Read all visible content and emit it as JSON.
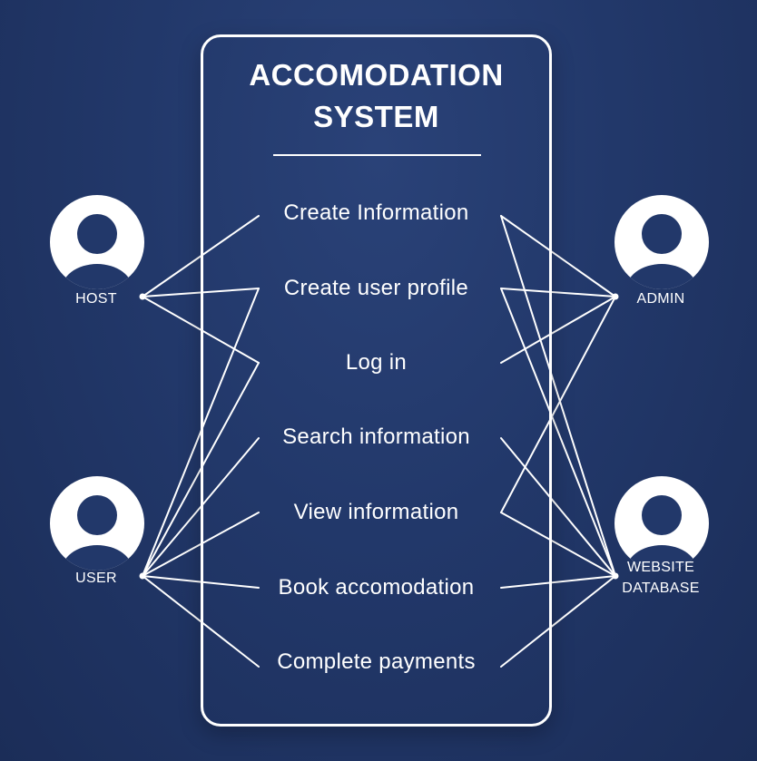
{
  "system": {
    "title_line1": "ACCOMODATION",
    "title_line2": "SYSTEM"
  },
  "use_cases": [
    "Create Information",
    "Create user profile",
    "Log in",
    "Search information",
    "View information",
    "Book accomodation",
    "Complete payments"
  ],
  "actors": {
    "host": "HOST",
    "user": "USER",
    "admin": "ADMIN",
    "database_line1": "WEBSITE",
    "database_line2": "DATABASE"
  },
  "actor_icon": "person-avatar-icon",
  "colors": {
    "background": "#22386a",
    "foreground": "#ffffff"
  }
}
